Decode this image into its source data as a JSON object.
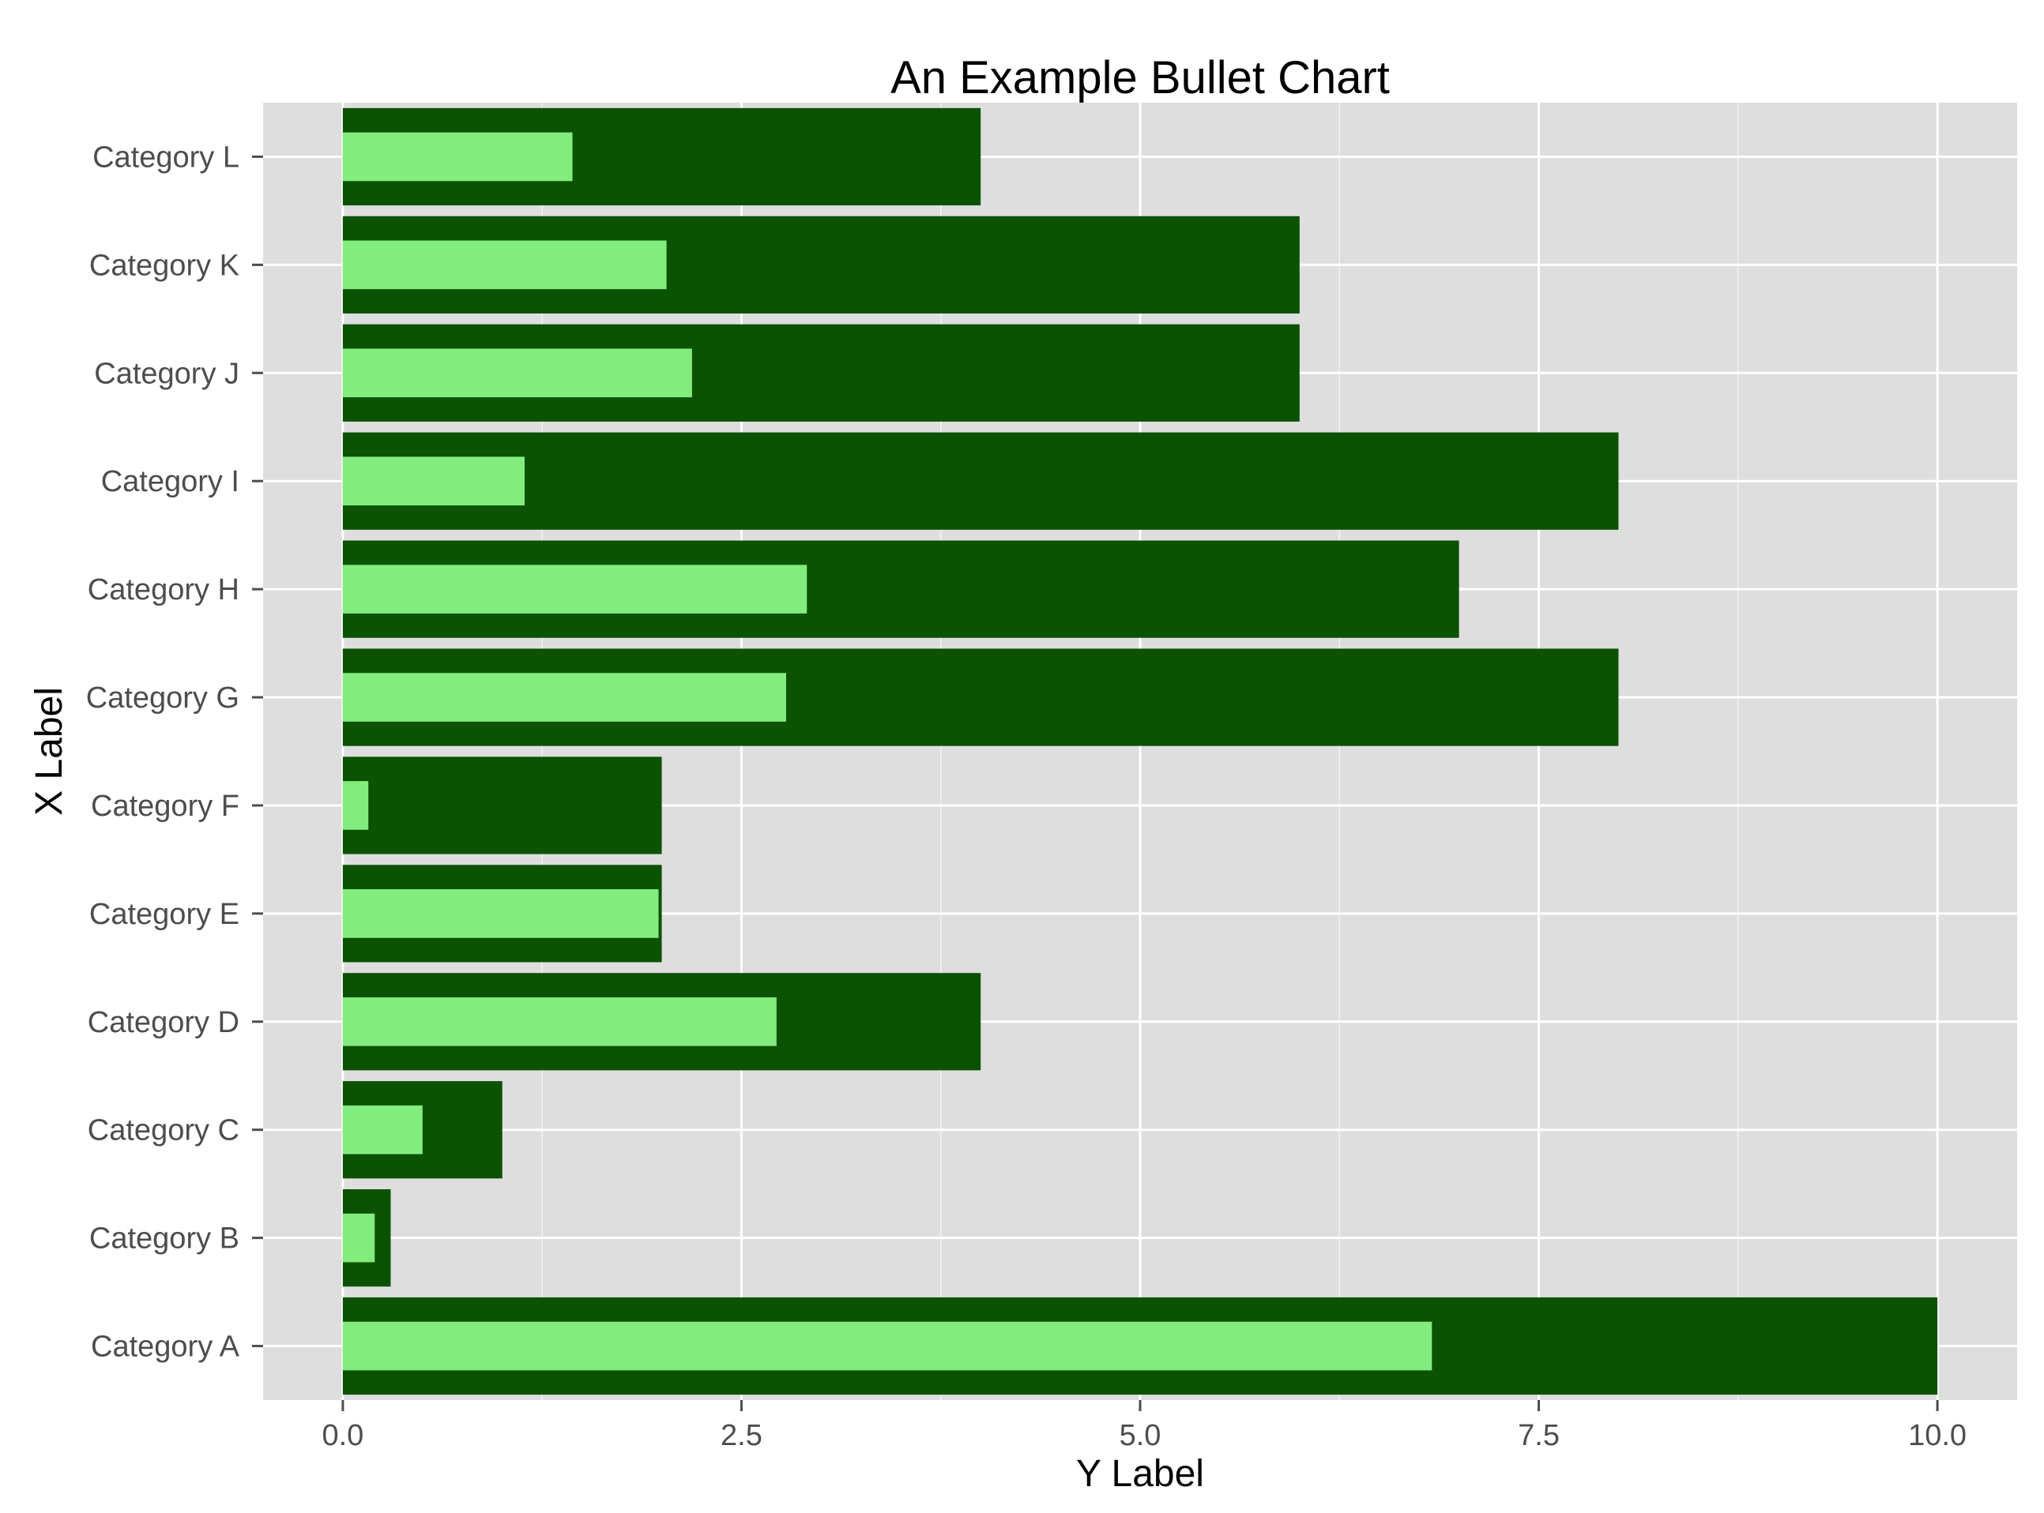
{
  "chart_data": {
    "type": "bar",
    "orientation": "horizontal",
    "style": "bullet",
    "title": "An Example Bullet Chart",
    "xlabel": "Y Label",
    "ylabel": "X Label",
    "xlim": [
      -0.5,
      10.5
    ],
    "x_ticks": [
      0.0,
      2.5,
      5.0,
      7.5,
      10.0
    ],
    "x_tick_labels": [
      "0.0",
      "2.5",
      "5.0",
      "7.5",
      "10.0"
    ],
    "grid": true,
    "categories": [
      "Category A",
      "Category B",
      "Category C",
      "Category D",
      "Category E",
      "Category F",
      "Category G",
      "Category H",
      "Category I",
      "Category J",
      "Category K",
      "Category L"
    ],
    "series": [
      {
        "values": [
          10,
          0.3,
          1,
          4,
          2,
          2,
          8,
          7,
          8,
          6,
          6,
          4
        ],
        "color": "#0b5202"
      },
      {
        "values": [
          6.83,
          0.2,
          0.5,
          2.72,
          1.98,
          0.16,
          2.78,
          2.91,
          1.14,
          2.19,
          2.03,
          1.44
        ],
        "color": "#82ed7e"
      }
    ],
    "panel_background": "#dedede",
    "grid_color": "#ffffff"
  }
}
